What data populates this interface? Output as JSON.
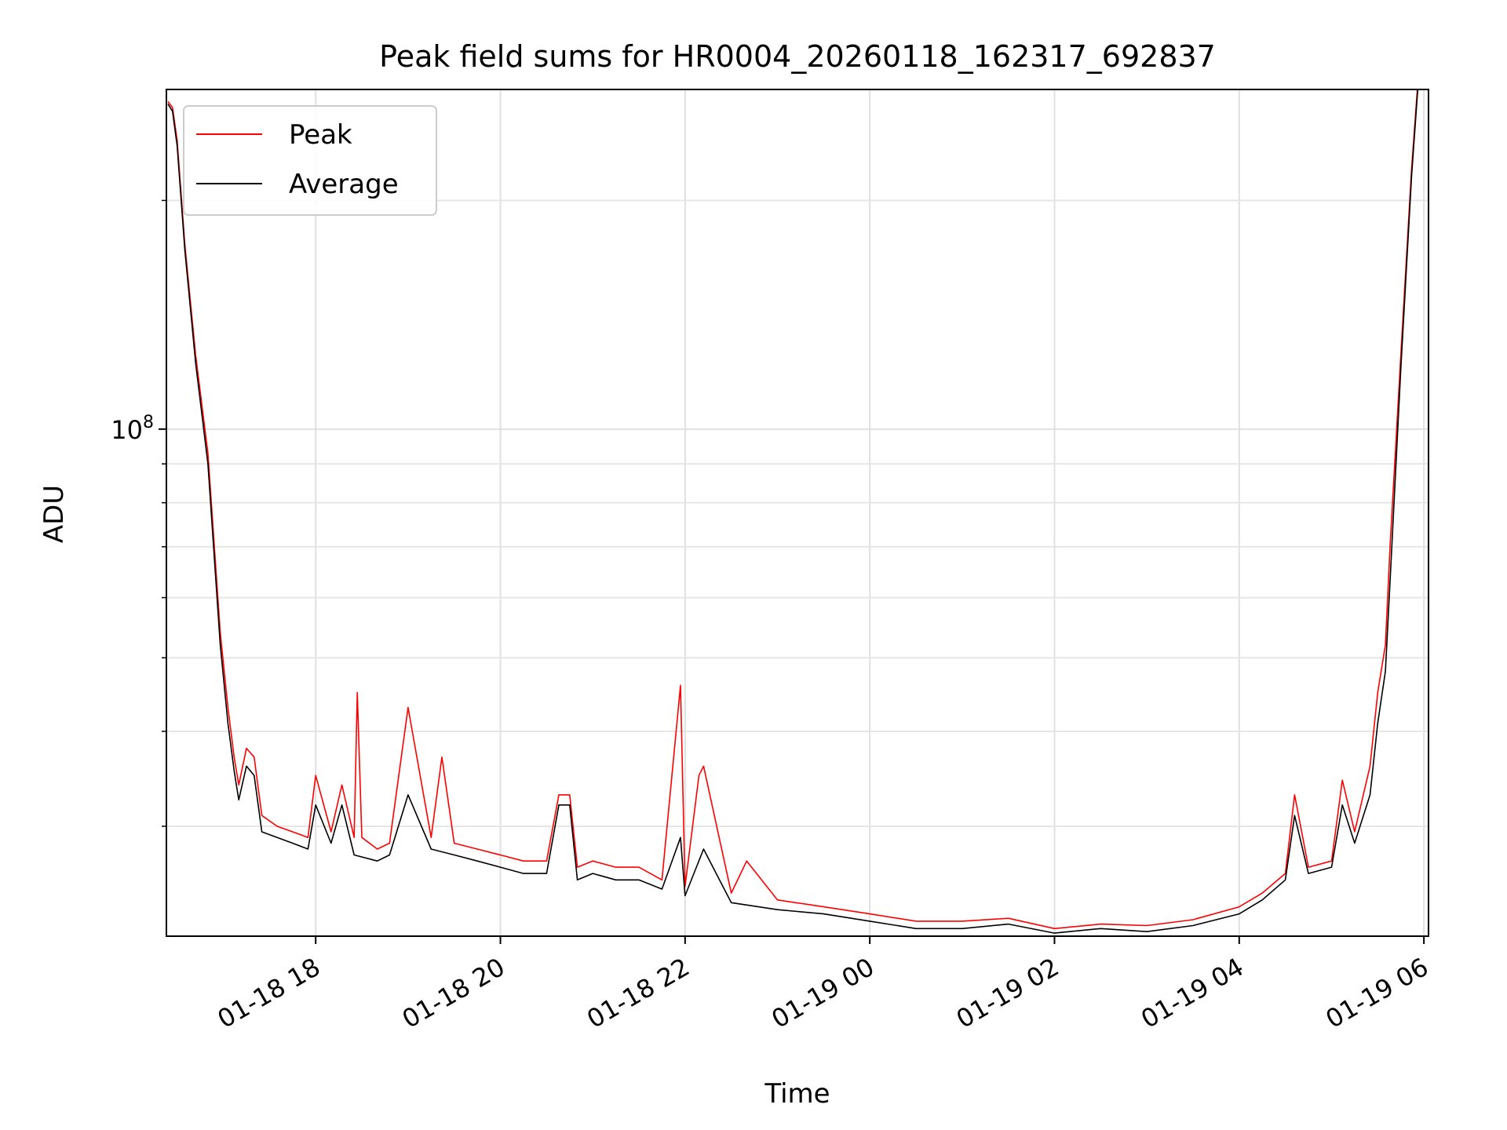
{
  "chart_data": {
    "type": "line",
    "title": "Peak field sums for HR0004_20260118_162317_692837",
    "xlabel": "Time",
    "ylabel": "ADU",
    "y_scale": "log",
    "xlim": [
      "2026-01-18 16:23",
      "2026-01-19 06:03"
    ],
    "ylim": [
      21500000,
      280000000
    ],
    "x_ticks": [
      {
        "t": "2026-01-18 18:00",
        "label": "01-18 18"
      },
      {
        "t": "2026-01-18 20:00",
        "label": "01-18 20"
      },
      {
        "t": "2026-01-18 22:00",
        "label": "01-18 22"
      },
      {
        "t": "2026-01-19 00:00",
        "label": "01-19 00"
      },
      {
        "t": "2026-01-19 02:00",
        "label": "01-19 02"
      },
      {
        "t": "2026-01-19 04:00",
        "label": "01-19 04"
      },
      {
        "t": "2026-01-19 06:00",
        "label": "01-19 06"
      }
    ],
    "y_major_ticks": [
      {
        "value": 100000000,
        "base": "10",
        "exp": "8"
      }
    ],
    "y_minor_ticks": [
      30000000,
      40000000,
      50000000,
      60000000,
      70000000,
      80000000,
      90000000,
      200000000
    ],
    "grid": true,
    "legend_position": "upper-left",
    "series": [
      {
        "name": "Peak",
        "color": "#ff0000",
        "x": [
          "2026-01-18 16:24",
          "2026-01-18 16:27",
          "2026-01-18 16:30",
          "2026-01-18 16:35",
          "2026-01-18 16:42",
          "2026-01-18 16:50",
          "2026-01-18 16:58",
          "2026-01-18 17:03",
          "2026-01-18 17:07",
          "2026-01-18 17:10",
          "2026-01-18 17:15",
          "2026-01-18 17:20",
          "2026-01-18 17:25",
          "2026-01-18 17:35",
          "2026-01-18 17:45",
          "2026-01-18 17:55",
          "2026-01-18 18:00",
          "2026-01-18 18:10",
          "2026-01-18 18:17",
          "2026-01-18 18:25",
          "2026-01-18 18:27",
          "2026-01-18 18:30",
          "2026-01-18 18:40",
          "2026-01-18 18:48",
          "2026-01-18 19:00",
          "2026-01-18 19:15",
          "2026-01-18 19:22",
          "2026-01-18 19:30",
          "2026-01-18 19:45",
          "2026-01-18 20:00",
          "2026-01-18 20:15",
          "2026-01-18 20:30",
          "2026-01-18 20:38",
          "2026-01-18 20:45",
          "2026-01-18 20:50",
          "2026-01-18 21:00",
          "2026-01-18 21:15",
          "2026-01-18 21:30",
          "2026-01-18 21:45",
          "2026-01-18 21:57",
          "2026-01-18 22:00",
          "2026-01-18 22:09",
          "2026-01-18 22:12",
          "2026-01-18 22:30",
          "2026-01-18 22:40",
          "2026-01-18 23:00",
          "2026-01-18 23:30",
          "2026-01-19 00:00",
          "2026-01-19 00:30",
          "2026-01-19 01:00",
          "2026-01-19 01:30",
          "2026-01-19 02:00",
          "2026-01-19 02:30",
          "2026-01-19 03:00",
          "2026-01-19 03:30",
          "2026-01-19 04:00",
          "2026-01-19 04:15",
          "2026-01-19 04:30",
          "2026-01-19 04:36",
          "2026-01-19 04:45",
          "2026-01-19 05:00",
          "2026-01-19 05:07",
          "2026-01-19 05:15",
          "2026-01-19 05:25",
          "2026-01-19 05:30",
          "2026-01-19 05:35",
          "2026-01-19 05:38",
          "2026-01-19 05:45",
          "2026-01-19 05:52",
          "2026-01-19 05:56"
        ],
        "y": [
          270000000,
          265000000,
          240000000,
          175000000,
          125000000,
          93000000,
          54000000,
          43000000,
          37000000,
          34000000,
          38000000,
          37000000,
          31000000,
          30000000,
          29500000,
          29000000,
          35000000,
          29500000,
          34000000,
          29000000,
          45000000,
          29000000,
          28000000,
          28500000,
          43000000,
          29000000,
          37000000,
          28500000,
          28000000,
          27500000,
          27000000,
          27000000,
          33000000,
          33000000,
          26500000,
          27000000,
          26500000,
          26500000,
          25500000,
          46000000,
          25000000,
          35000000,
          36000000,
          24500000,
          27000000,
          24000000,
          23500000,
          23000000,
          22500000,
          22500000,
          22700000,
          22000000,
          22300000,
          22200000,
          22600000,
          23500000,
          24500000,
          26000000,
          33000000,
          26500000,
          27000000,
          34500000,
          29500000,
          36000000,
          45000000,
          52000000,
          70000000,
          125000000,
          220000000,
          285000000
        ]
      },
      {
        "name": "Average",
        "color": "#000000",
        "x": [
          "2026-01-18 16:24",
          "2026-01-18 16:27",
          "2026-01-18 16:30",
          "2026-01-18 16:35",
          "2026-01-18 16:42",
          "2026-01-18 16:50",
          "2026-01-18 16:58",
          "2026-01-18 17:03",
          "2026-01-18 17:07",
          "2026-01-18 17:10",
          "2026-01-18 17:15",
          "2026-01-18 17:20",
          "2026-01-18 17:25",
          "2026-01-18 17:35",
          "2026-01-18 17:45",
          "2026-01-18 17:55",
          "2026-01-18 18:00",
          "2026-01-18 18:10",
          "2026-01-18 18:17",
          "2026-01-18 18:25",
          "2026-01-18 18:40",
          "2026-01-18 18:48",
          "2026-01-18 19:00",
          "2026-01-18 19:15",
          "2026-01-18 19:30",
          "2026-01-18 19:45",
          "2026-01-18 20:00",
          "2026-01-18 20:15",
          "2026-01-18 20:30",
          "2026-01-18 20:38",
          "2026-01-18 20:45",
          "2026-01-18 20:50",
          "2026-01-18 21:00",
          "2026-01-18 21:15",
          "2026-01-18 21:30",
          "2026-01-18 21:45",
          "2026-01-18 21:57",
          "2026-01-18 22:00",
          "2026-01-18 22:12",
          "2026-01-18 22:30",
          "2026-01-18 23:00",
          "2026-01-18 23:30",
          "2026-01-19 00:00",
          "2026-01-19 00:30",
          "2026-01-19 01:00",
          "2026-01-19 01:30",
          "2026-01-19 02:00",
          "2026-01-19 02:30",
          "2026-01-19 03:00",
          "2026-01-19 03:30",
          "2026-01-19 04:00",
          "2026-01-19 04:15",
          "2026-01-19 04:30",
          "2026-01-19 04:36",
          "2026-01-19 04:45",
          "2026-01-19 05:00",
          "2026-01-19 05:07",
          "2026-01-19 05:15",
          "2026-01-19 05:25",
          "2026-01-19 05:30",
          "2026-01-19 05:35",
          "2026-01-19 05:38",
          "2026-01-19 05:45",
          "2026-01-19 05:52",
          "2026-01-19 05:56"
        ],
        "y": [
          268000000,
          262000000,
          236000000,
          172000000,
          122000000,
          90000000,
          52000000,
          41000000,
          35500000,
          32500000,
          36000000,
          35000000,
          29500000,
          29000000,
          28500000,
          28000000,
          32000000,
          28500000,
          32000000,
          27500000,
          27000000,
          27500000,
          33000000,
          28000000,
          27500000,
          27000000,
          26500000,
          26000000,
          26000000,
          32000000,
          32000000,
          25500000,
          26000000,
          25500000,
          25500000,
          24800000,
          29000000,
          24300000,
          28000000,
          23800000,
          23300000,
          23000000,
          22500000,
          22000000,
          22000000,
          22300000,
          21700000,
          22000000,
          21800000,
          22200000,
          23000000,
          24000000,
          25500000,
          31000000,
          26000000,
          26500000,
          32000000,
          28500000,
          33000000,
          41000000,
          48000000,
          63000000,
          120000000,
          215000000,
          280000000
        ]
      }
    ]
  }
}
